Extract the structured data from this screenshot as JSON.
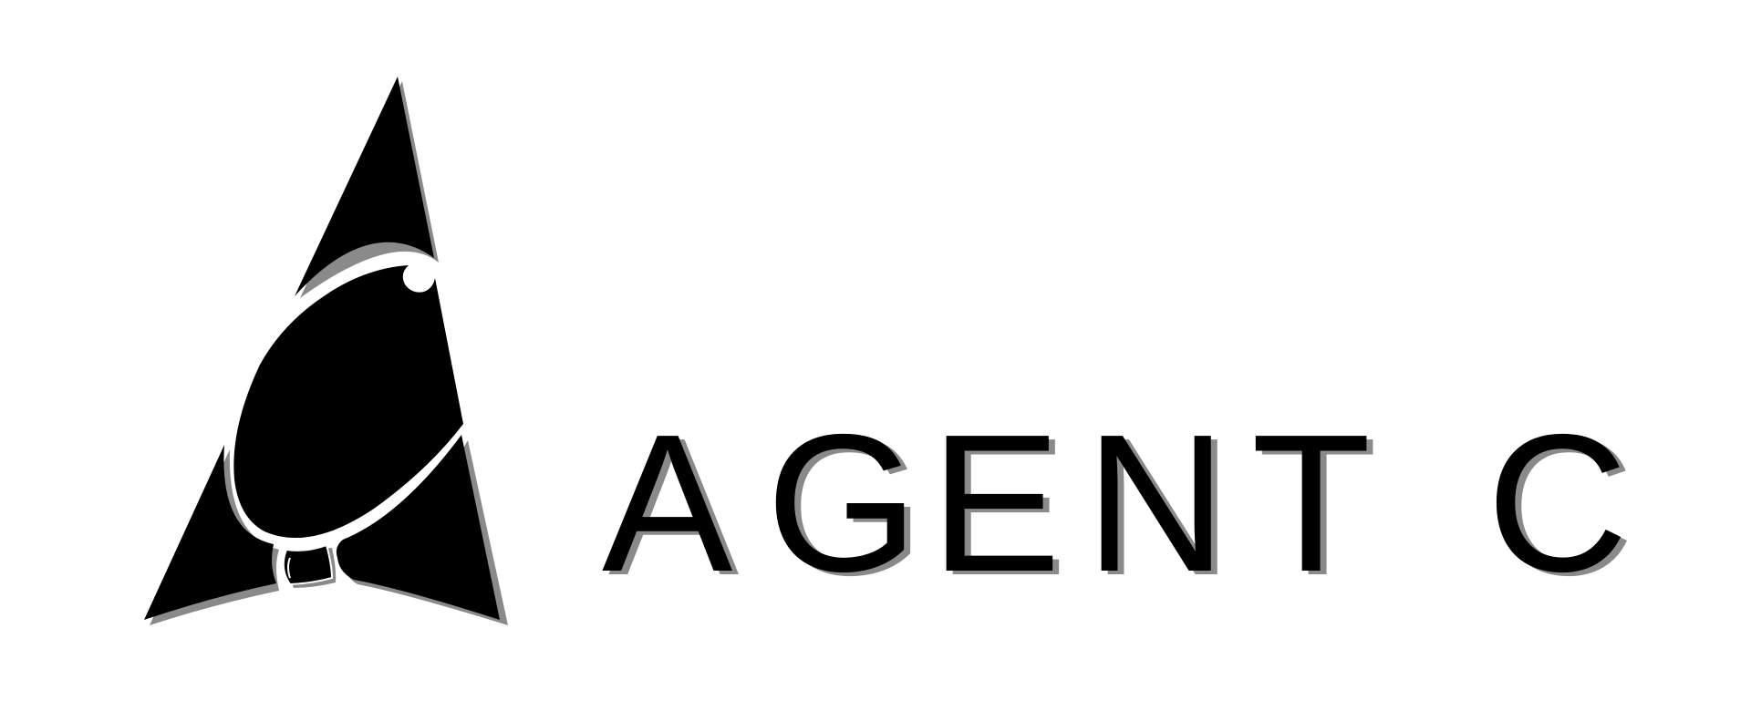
{
  "brand": {
    "name": "AGENT C",
    "letters": [
      "A",
      "G",
      "E",
      "N",
      "T",
      "C"
    ]
  },
  "colors": {
    "background": "#ffffff",
    "mark": "#000000",
    "shadow": "#8a8a8a",
    "accent": "#ffffff"
  },
  "logo": {
    "icon": "stylized-a-agent-icon"
  }
}
